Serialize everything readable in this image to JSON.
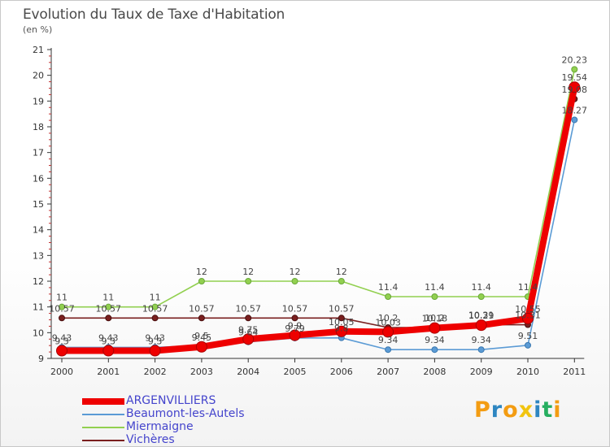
{
  "title": "Evolution du Taux de Taxe d'Habitation",
  "subtitle": "(en %)",
  "brand": {
    "letters": [
      "P",
      "r",
      "o",
      "x",
      "i",
      "t",
      "i"
    ],
    "colors": [
      "#f39c12",
      "#2e86c1",
      "#f39c12",
      "#f1c40f",
      "#2e86c1",
      "#27ae60",
      "#f39c12"
    ]
  },
  "chart_data": {
    "type": "line",
    "title": "Evolution du Taux de Taxe d'Habitation",
    "ylabel": "(en %)",
    "xlabel": "",
    "categories": [
      "2000",
      "2001",
      "2002",
      "2003",
      "2004",
      "2005",
      "2006",
      "2007",
      "2008",
      "2009",
      "2010",
      "2011"
    ],
    "ylim": [
      9,
      21
    ],
    "yticks": [
      "9",
      "10",
      "11",
      "12",
      "13",
      "14",
      "15",
      "16",
      "17",
      "18",
      "19",
      "20",
      "21"
    ],
    "grid": false,
    "legend": "bottom-left",
    "series": [
      {
        "name": "ARGENVILLIERS",
        "color": "#ee0000",
        "values": [
          9.3,
          9.3,
          9.3,
          9.45,
          9.75,
          9.9,
          10.05,
          10.03,
          10.18,
          10.29,
          10.55,
          19.54
        ],
        "labels": [
          "9.3",
          "9.3",
          "9.3",
          "9.45",
          "9.75",
          "9.9",
          "10.05",
          "10.03",
          "10.18",
          "10.29",
          "10.55",
          "19.54"
        ]
      },
      {
        "name": "Beaumont-les-Autels",
        "color": "#5b9bd5",
        "values": [
          9.43,
          9.43,
          9.43,
          9.5,
          9.64,
          9.79,
          9.8,
          9.34,
          9.34,
          9.34,
          9.51,
          18.27
        ],
        "labels": [
          "9.43",
          "9.43",
          "9.43",
          "9.5",
          "9.64",
          "9.79",
          "9.8",
          "9.34",
          "9.34",
          "9.34",
          "9.51",
          "18.27"
        ]
      },
      {
        "name": "Miermaigne",
        "color": "#92d050",
        "values": [
          11,
          11,
          11,
          12,
          12,
          12,
          12,
          11.4,
          11.4,
          11.4,
          11.4,
          20.23
        ],
        "labels": [
          "11",
          "11",
          "11",
          "12",
          "12",
          "12",
          "12",
          "11.4",
          "11.4",
          "11.4",
          "11.4",
          "20.23"
        ]
      },
      {
        "name": "Vichères",
        "color": "#7a1f1f",
        "values": [
          10.57,
          10.57,
          10.57,
          10.57,
          10.57,
          10.57,
          10.57,
          10.2,
          10.2,
          10.31,
          10.31,
          19.08
        ],
        "labels": [
          "10.57",
          "10.57",
          "10.57",
          "10.57",
          "10.57",
          "10.57",
          "10.57",
          "10.2",
          "10.2",
          "10.31",
          "10.31",
          "19.08"
        ]
      }
    ]
  }
}
